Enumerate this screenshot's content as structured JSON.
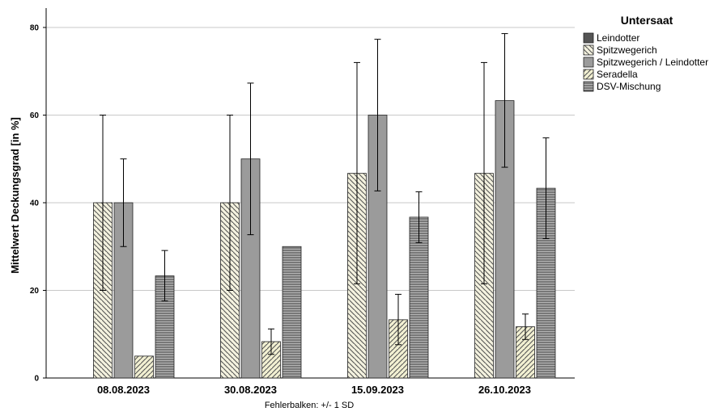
{
  "chart_data": {
    "type": "bar",
    "categories": [
      "08.08.2023",
      "30.08.2023",
      "15.09.2023",
      "26.10.2023"
    ],
    "ylabel": "Mittelwert Deckungsgrad [in %]",
    "xlabel": "",
    "ylim": [
      0,
      80
    ],
    "yticks": [
      0,
      20,
      40,
      60,
      80
    ],
    "grid": "horizontal",
    "legend": {
      "title": "Untersaat",
      "placement": "right"
    },
    "footnote": "Fehlerbalken: +/- 1 SD",
    "series": [
      {
        "name": "Leindotter",
        "pattern": "solid-dark",
        "color": "#555555",
        "values": [
          0,
          0,
          0,
          0
        ],
        "error_low": [
          0,
          0,
          0,
          0
        ],
        "error_high": [
          0,
          0,
          0,
          0
        ]
      },
      {
        "name": "Spitzwegerich",
        "pattern": "diagonal-backslash",
        "color": "#f2f0dc",
        "values": [
          40,
          40,
          46.7,
          46.7
        ],
        "error_low": [
          20,
          20,
          21.5,
          21.5
        ],
        "error_high": [
          60,
          60,
          72,
          72
        ]
      },
      {
        "name": "Spitzwegerich / Leindotter",
        "pattern": "solid-gray",
        "color": "#9b9b9b",
        "values": [
          40,
          50,
          60,
          63.3
        ],
        "error_low": [
          30,
          32.7,
          42.7,
          48.1
        ],
        "error_high": [
          50,
          67.3,
          77.3,
          78.6
        ]
      },
      {
        "name": "Seradella",
        "pattern": "diagonal-slash",
        "color": "#efeecf",
        "values": [
          5,
          8.3,
          13.3,
          11.7
        ],
        "error_low": [
          5,
          5.4,
          7.6,
          8.8
        ],
        "error_high": [
          5,
          11.2,
          19.1,
          14.6
        ]
      },
      {
        "name": "DSV-Mischung",
        "pattern": "horizontal-lines",
        "color": "#aaaaaa",
        "values": [
          23.3,
          30,
          36.7,
          43.3
        ],
        "error_low": [
          17.6,
          30,
          30.9,
          31.8
        ],
        "error_high": [
          29.1,
          30,
          42.5,
          54.8
        ]
      }
    ]
  }
}
